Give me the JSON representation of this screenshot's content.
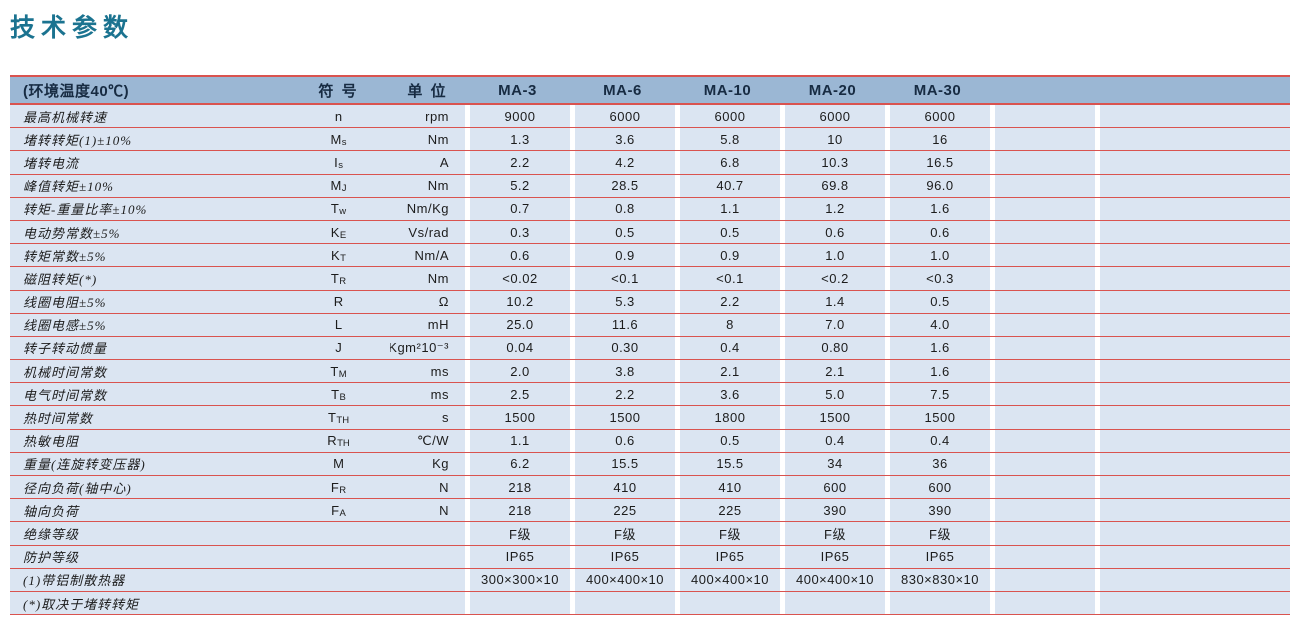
{
  "page_title": "技术参数",
  "colors": {
    "title_teal": "#1b7390",
    "header_bg": "#9bb7d4",
    "row_bg": "#dbe5f2",
    "rule_red": "#d9534f",
    "header_text": "#172b42"
  },
  "table": {
    "header": {
      "condition": "(环境温度40℃)",
      "symbol_label": "符 号",
      "unit_label": "单 位",
      "models": [
        "MA-3",
        "MA-6",
        "MA-10",
        "MA-20",
        "MA-30"
      ]
    },
    "rows": [
      {
        "label": "最高机械转速",
        "symbol": "n",
        "sub": "",
        "unit": "rpm",
        "values": [
          "9000",
          "6000",
          "6000",
          "6000",
          "6000"
        ]
      },
      {
        "label": "堵转转矩(1)±10%",
        "symbol": "M",
        "sub": "s",
        "unit": "Nm",
        "values": [
          "1.3",
          "3.6",
          "5.8",
          "10",
          "16"
        ]
      },
      {
        "label": "堵转电流",
        "symbol": "I",
        "sub": "s",
        "unit": "A",
        "values": [
          "2.2",
          "4.2",
          "6.8",
          "10.3",
          "16.5"
        ]
      },
      {
        "label": "峰值转矩±10%",
        "symbol": "M",
        "sub": "J",
        "unit": "Nm",
        "values": [
          "5.2",
          "28.5",
          "40.7",
          "69.8",
          "96.0"
        ]
      },
      {
        "label": "转矩-重量比率±10%",
        "symbol": "T",
        "sub": "w",
        "unit": "Nm/Kg",
        "values": [
          "0.7",
          "0.8",
          "1.1",
          "1.2",
          "1.6"
        ]
      },
      {
        "label": "电动势常数±5%",
        "symbol": "K",
        "sub": "E",
        "unit": "Vs/rad",
        "values": [
          "0.3",
          "0.5",
          "0.5",
          "0.6",
          "0.6"
        ]
      },
      {
        "label": "转矩常数±5%",
        "symbol": "K",
        "sub": "T",
        "unit": "Nm/A",
        "values": [
          "0.6",
          "0.9",
          "0.9",
          "1.0",
          "1.0"
        ]
      },
      {
        "label": "磁阻转矩(*)",
        "symbol": "T",
        "sub": "R",
        "unit": "Nm",
        "values": [
          "<0.02",
          "<0.1",
          "<0.1",
          "<0.2",
          "<0.3"
        ]
      },
      {
        "label": "线圈电阻±5%",
        "symbol": "R",
        "sub": "",
        "unit": "Ω",
        "values": [
          "10.2",
          "5.3",
          "2.2",
          "1.4",
          "0.5"
        ]
      },
      {
        "label": "线圈电感±5%",
        "symbol": "L",
        "sub": "",
        "unit": "mH",
        "values": [
          "25.0",
          "11.6",
          "8",
          "7.0",
          "4.0"
        ]
      },
      {
        "label": "转子转动惯量",
        "symbol": "J",
        "sub": "",
        "unit": "Kgm²10⁻³",
        "values": [
          "0.04",
          "0.30",
          "0.4",
          "0.80",
          "1.6"
        ]
      },
      {
        "label": "机械时间常数",
        "symbol": "T",
        "sub": "M",
        "unit": "ms",
        "values": [
          "2.0",
          "3.8",
          "2.1",
          "2.1",
          "1.6"
        ]
      },
      {
        "label": "电气时间常数",
        "symbol": "T",
        "sub": "B",
        "unit": "ms",
        "values": [
          "2.5",
          "2.2",
          "3.6",
          "5.0",
          "7.5"
        ]
      },
      {
        "label": "热时间常数",
        "symbol": "T",
        "sub": "TH",
        "unit": "s",
        "values": [
          "1500",
          "1500",
          "1800",
          "1500",
          "1500"
        ]
      },
      {
        "label": "热敏电阻",
        "symbol": "R",
        "sub": "TH",
        "unit": "℃/W",
        "values": [
          "1.1",
          "0.6",
          "0.5",
          "0.4",
          "0.4"
        ]
      },
      {
        "label": "重量(连旋转变压器)",
        "symbol": "M",
        "sub": "",
        "unit": "Kg",
        "values": [
          "6.2",
          "15.5",
          "15.5",
          "34",
          "36"
        ]
      },
      {
        "label": "径向负荷(轴中心)",
        "symbol": "F",
        "sub": "R",
        "unit": "N",
        "values": [
          "218",
          "410",
          "410",
          "600",
          "600"
        ]
      },
      {
        "label": "轴向负荷",
        "symbol": "F",
        "sub": "A",
        "unit": "N",
        "values": [
          "218",
          "225",
          "225",
          "390",
          "390"
        ]
      },
      {
        "label": "绝缘等级",
        "symbol": "",
        "sub": "",
        "unit": "",
        "values": [
          "F级",
          "F级",
          "F级",
          "F级",
          "F级"
        ]
      },
      {
        "label": "防护等级",
        "symbol": "",
        "sub": "",
        "unit": "",
        "values": [
          "IP65",
          "IP65",
          "IP65",
          "IP65",
          "IP65"
        ]
      },
      {
        "label": "(1)带铝制散热器",
        "symbol": "",
        "sub": "",
        "unit": "",
        "values": [
          "300×300×10",
          "400×400×10",
          "400×400×10",
          "400×400×10",
          "830×830×10"
        ]
      },
      {
        "label": "(*)取决于堵转转矩",
        "symbol": "",
        "sub": "",
        "unit": "",
        "values": [
          "",
          "",
          "",
          "",
          ""
        ]
      }
    ]
  }
}
